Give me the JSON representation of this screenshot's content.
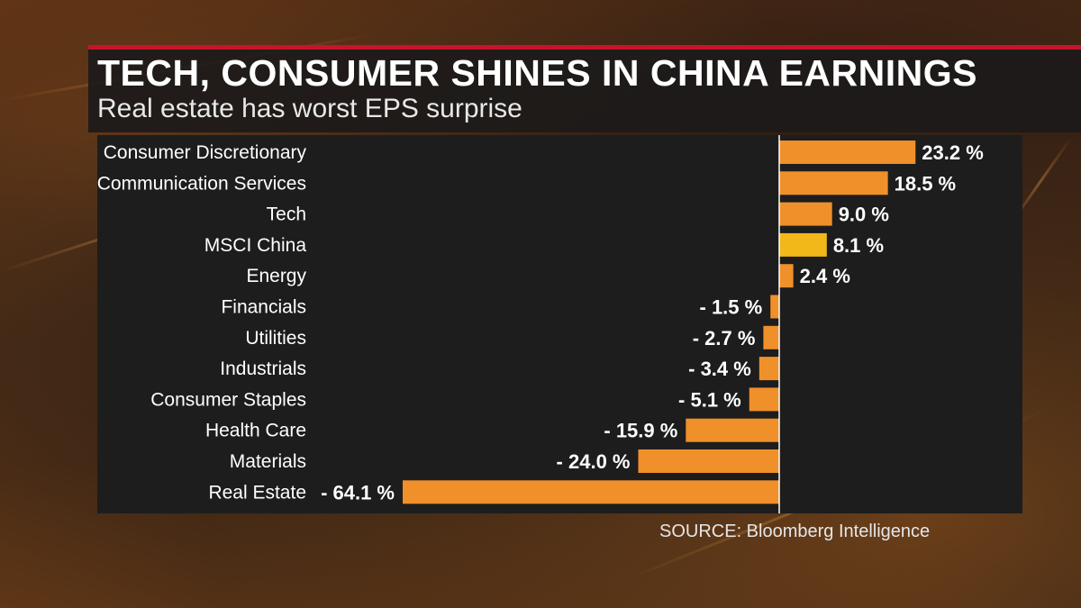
{
  "title": "TECH, CONSUMER SHINES IN CHINA EARNINGS",
  "subtitle": "Real estate has worst EPS surprise",
  "source": "SOURCE: Bloomberg Intelligence",
  "colors": {
    "bar": "#f0902a",
    "highlight": "#f2b81a",
    "accent_rule": "#c8142b",
    "axis": "#ffffff"
  },
  "chart_data": {
    "type": "bar",
    "orientation": "horizontal",
    "categories": [
      "Consumer Discretionary",
      "Communication Services",
      "Tech",
      "MSCI China",
      "Energy",
      "Financials",
      "Utilities",
      "Industrials",
      "Consumer Staples",
      "Health Care",
      "Materials",
      "Real Estate"
    ],
    "values": [
      23.2,
      18.5,
      9.0,
      8.1,
      2.4,
      -1.5,
      -2.7,
      -3.4,
      -5.1,
      -15.9,
      -24.0,
      -64.1
    ],
    "labels": [
      "23.2 %",
      "18.5 %",
      "9.0 %",
      "8.1 %",
      "2.4 %",
      "- 1.5 %",
      "- 2.7 %",
      "- 3.4 %",
      "- 5.1 %",
      "- 15.9 %",
      "- 24.0 %",
      "- 64.1 %"
    ],
    "highlight_category": "MSCI China",
    "xlim": [
      -64.1,
      23.2
    ],
    "grid": false,
    "legend": "none"
  }
}
